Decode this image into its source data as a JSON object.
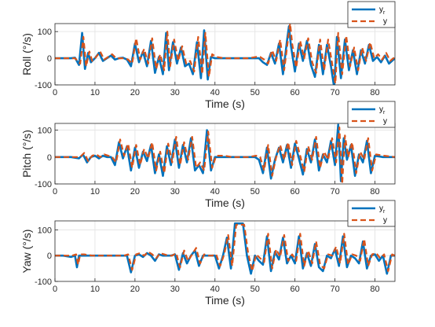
{
  "chart_data": [
    {
      "type": "line",
      "xlabel": "Time (s)",
      "ylabel": "Roll (°/s)",
      "xlim": [
        0,
        85
      ],
      "ylim": [
        -100,
        130
      ],
      "xticks": [
        "0",
        "10",
        "20",
        "30",
        "40",
        "50",
        "60",
        "70",
        "80"
      ],
      "yticks": [
        "100",
        "0",
        "-100"
      ],
      "grid": true,
      "legend_position": "top-right",
      "series": [
        {
          "name": "y_r",
          "color": "#0072BD",
          "style": "solid",
          "x": [
            0,
            2,
            4,
            5,
            6,
            6.8,
            7.5,
            8.3,
            9,
            10,
            11,
            12,
            13,
            14,
            15,
            16,
            17,
            18,
            19,
            20,
            21,
            22,
            23,
            24,
            25,
            26,
            27,
            27.8,
            28.5,
            29.5,
            30.5,
            31.5,
            32.5,
            33.5,
            34.5,
            35.5,
            36.5,
            37.3,
            38.2,
            39,
            40,
            42,
            44,
            46,
            48,
            50,
            51,
            52,
            53,
            54,
            55,
            56,
            57,
            58,
            58.5,
            59,
            60,
            61,
            62,
            63,
            64,
            65,
            66,
            67,
            68,
            69,
            69.8,
            70.5,
            71.5,
            72.5,
            73.5,
            74.5,
            75.5,
            76.5,
            77.5,
            78.5,
            79.5,
            80.5,
            81.5,
            82.5,
            83.5,
            85
          ],
          "values": [
            0,
            0,
            0,
            2,
            -25,
            95,
            -40,
            20,
            -15,
            0,
            20,
            -10,
            0,
            10,
            -5,
            0,
            2,
            -5,
            -30,
            55,
            -15,
            25,
            -30,
            65,
            -55,
            5,
            -60,
            95,
            -45,
            60,
            -20,
            40,
            -30,
            -20,
            -60,
            60,
            -75,
            105,
            -80,
            5,
            0,
            0,
            0,
            0,
            0,
            0,
            0,
            -15,
            -25,
            20,
            -20,
            55,
            -60,
            65,
            120,
            45,
            -50,
            55,
            -10,
            65,
            -25,
            -70,
            50,
            -60,
            50,
            -30,
            -110,
            80,
            -75,
            70,
            -45,
            30,
            -60,
            30,
            -20,
            50,
            -10,
            5,
            -15,
            10,
            -20,
            0
          ]
        },
        {
          "name": "y",
          "color": "#D95319",
          "style": "dashed",
          "x": [
            0,
            2,
            4,
            5,
            6.3,
            7.1,
            7.8,
            8.6,
            9.3,
            10.3,
            11.3,
            12.3,
            13.3,
            14.3,
            15.3,
            16.3,
            17.3,
            18.3,
            19.3,
            20.3,
            21.3,
            22.3,
            23.3,
            24.3,
            25.3,
            26.3,
            27.3,
            28.1,
            28.8,
            29.8,
            30.8,
            31.8,
            32.8,
            33.8,
            34.8,
            35.8,
            36.8,
            37.6,
            38.5,
            39.3,
            40.3,
            42.3,
            44.3,
            46.3,
            48.3,
            50.3,
            51.3,
            52.3,
            53.3,
            54.3,
            55.3,
            56.3,
            57.3,
            58.3,
            58.8,
            59.3,
            60.3,
            61.3,
            62.3,
            63.3,
            64.3,
            65.3,
            66.3,
            67.3,
            68.3,
            69.3,
            70.1,
            70.8,
            71.8,
            72.8,
            73.8,
            74.8,
            75.8,
            76.8,
            77.8,
            78.8,
            79.8,
            80.8,
            81.8,
            82.8,
            83.8,
            85
          ],
          "values": [
            0,
            0,
            0,
            0,
            -20,
            80,
            -30,
            25,
            -10,
            5,
            25,
            -5,
            5,
            15,
            0,
            0,
            0,
            -5,
            -20,
            75,
            -5,
            35,
            -20,
            75,
            -40,
            15,
            -45,
            100,
            -30,
            70,
            -10,
            45,
            -20,
            -10,
            -50,
            80,
            -60,
            95,
            -70,
            15,
            5,
            0,
            0,
            0,
            0,
            5,
            5,
            -5,
            -20,
            30,
            -10,
            70,
            -45,
            75,
            130,
            55,
            -35,
            65,
            0,
            75,
            -15,
            -55,
            70,
            -45,
            70,
            -20,
            -95,
            95,
            -60,
            85,
            -30,
            40,
            -45,
            40,
            -10,
            60,
            0,
            15,
            -5,
            20,
            -10,
            5
          ]
        }
      ]
    },
    {
      "type": "line",
      "xlabel": "Time (s)",
      "ylabel": "Pitch (°/s)",
      "xlim": [
        0,
        85
      ],
      "ylim": [
        -100,
        125
      ],
      "xticks": [
        "0",
        "10",
        "20",
        "30",
        "40",
        "50",
        "60",
        "70",
        "80"
      ],
      "yticks": [
        "100",
        "0",
        "-100"
      ],
      "grid": true,
      "legend_position": "top-right",
      "series": [
        {
          "name": "y_r",
          "color": "#0072BD",
          "style": "solid",
          "x": [
            0,
            2,
            4,
            6,
            7,
            8,
            9,
            10,
            11,
            12,
            13,
            14,
            15,
            16,
            17,
            18,
            19,
            20,
            21,
            22,
            23,
            24,
            25,
            26,
            27,
            28,
            29,
            30,
            31,
            32,
            33,
            34,
            35,
            36,
            37,
            38,
            39,
            40,
            42,
            44,
            46,
            48,
            50,
            51,
            52,
            53,
            54,
            55,
            56,
            57,
            58,
            59,
            60,
            61,
            62,
            63,
            64,
            65,
            66,
            67,
            68,
            69,
            70,
            70.8,
            71.5,
            72.2,
            73,
            74,
            75,
            76,
            77,
            78,
            79,
            80,
            82,
            85
          ],
          "values": [
            0,
            0,
            0,
            -5,
            10,
            -20,
            0,
            5,
            -5,
            5,
            0,
            0,
            -30,
            55,
            -5,
            40,
            -50,
            35,
            -40,
            20,
            -15,
            45,
            -60,
            10,
            -70,
            40,
            -30,
            65,
            -40,
            45,
            -20,
            70,
            -50,
            -30,
            -60,
            100,
            -50,
            0,
            0,
            0,
            0,
            0,
            0,
            -10,
            -60,
            35,
            -80,
            -10,
            35,
            -20,
            45,
            -40,
            50,
            -5,
            -65,
            30,
            -20,
            65,
            -50,
            10,
            -20,
            60,
            -30,
            120,
            -90,
            70,
            -10,
            45,
            -70,
            10,
            -20,
            60,
            -60,
            5,
            0,
            0
          ]
        },
        {
          "name": "y",
          "color": "#D95319",
          "style": "dashed",
          "x": [
            0,
            2,
            4,
            6.3,
            7.3,
            8.3,
            9.3,
            10.3,
            11.3,
            12.3,
            13.3,
            14.3,
            15.3,
            16.3,
            17.3,
            18.3,
            19.3,
            20.3,
            21.3,
            22.3,
            23.3,
            24.3,
            25.3,
            26.3,
            27.3,
            28.3,
            29.3,
            30.3,
            31.3,
            32.3,
            33.3,
            34.3,
            35.3,
            36.3,
            37.3,
            38.3,
            39.3,
            40.3,
            42.3,
            44.3,
            46.3,
            48.3,
            50.3,
            51.3,
            52.3,
            53.3,
            54.3,
            55.3,
            56.3,
            57.3,
            58.3,
            59.3,
            60.3,
            61.3,
            62.3,
            63.3,
            64.3,
            65.3,
            66.3,
            67.3,
            68.3,
            69.3,
            70.3,
            71.1,
            71.8,
            72.5,
            73.3,
            74.3,
            75.3,
            76.3,
            77.3,
            78.3,
            79.3,
            80.3,
            82.3,
            85
          ],
          "values": [
            0,
            0,
            0,
            0,
            15,
            -15,
            5,
            10,
            0,
            10,
            5,
            0,
            -20,
            65,
            5,
            50,
            -40,
            45,
            -30,
            30,
            -5,
            55,
            -50,
            20,
            -60,
            50,
            -20,
            75,
            -30,
            55,
            -10,
            75,
            -40,
            -20,
            -50,
            95,
            -40,
            5,
            5,
            0,
            0,
            0,
            5,
            0,
            -50,
            45,
            -70,
            0,
            45,
            -10,
            55,
            -30,
            60,
            5,
            -55,
            40,
            -10,
            75,
            -40,
            20,
            -10,
            70,
            -20,
            110,
            -100,
            80,
            0,
            55,
            -60,
            20,
            -10,
            70,
            -50,
            10,
            5,
            0
          ]
        }
      ]
    },
    {
      "type": "line",
      "xlabel": "Time (s)",
      "ylabel": "Yaw (°/s)",
      "xlim": [
        0,
        85
      ],
      "ylim": [
        -100,
        135
      ],
      "xticks": [
        "0",
        "10",
        "20",
        "30",
        "40",
        "50",
        "60",
        "70",
        "80"
      ],
      "yticks": [
        "100",
        "0",
        "-100"
      ],
      "grid": true,
      "legend_position": "top-right",
      "series": [
        {
          "name": "y_r",
          "color": "#0072BD",
          "style": "solid",
          "x": [
            0,
            2,
            4,
            5,
            5.5,
            6,
            7,
            9,
            11,
            13,
            15,
            16,
            17,
            18,
            19,
            20,
            21,
            22,
            23,
            24,
            25,
            26,
            27,
            28,
            29,
            30,
            31,
            32,
            33,
            34,
            35,
            36,
            37,
            38,
            39,
            40,
            41,
            42,
            43,
            44,
            45,
            46,
            47,
            48,
            49,
            50,
            51,
            52,
            53,
            54,
            55,
            56,
            57,
            58,
            59,
            60,
            61,
            62,
            63,
            64,
            65,
            66,
            67,
            68,
            69,
            70,
            71,
            72,
            73,
            74,
            75,
            76,
            77,
            78,
            79,
            80,
            81,
            82,
            83,
            84,
            85
          ],
          "values": [
            0,
            0,
            -5,
            0,
            -45,
            0,
            0,
            0,
            0,
            0,
            0,
            0,
            0,
            0,
            -65,
            0,
            5,
            -5,
            10,
            0,
            -20,
            5,
            0,
            0,
            0,
            5,
            -55,
            10,
            -30,
            0,
            20,
            -40,
            0,
            0,
            0,
            0,
            -50,
            0,
            70,
            -50,
            125,
            125,
            125,
            0,
            -70,
            0,
            -20,
            -35,
            75,
            -60,
            15,
            -15,
            70,
            -30,
            0,
            -30,
            75,
            -50,
            10,
            -40,
            45,
            -45,
            -60,
            0,
            -10,
            25,
            -40,
            75,
            -45,
            0,
            -10,
            -30,
            55,
            -50,
            0,
            5,
            -20,
            0,
            -70,
            0,
            0
          ]
        },
        {
          "name": "y",
          "color": "#D95319",
          "style": "dashed",
          "x": [
            0,
            2,
            4.3,
            5.3,
            5.8,
            6.3,
            7.3,
            9.3,
            11.3,
            13.3,
            15.3,
            16.3,
            17.3,
            18.3,
            19.3,
            20.3,
            21.3,
            22.3,
            23.3,
            24.3,
            25.3,
            26.3,
            27.3,
            28.3,
            29.3,
            30.3,
            31.3,
            32.3,
            33.3,
            34.3,
            35.3,
            36.3,
            37.3,
            38.3,
            39.3,
            40.3,
            41.3,
            42.3,
            43.3,
            44.3,
            45.3,
            46.3,
            47.3,
            48.3,
            49.3,
            50.3,
            51.3,
            52.3,
            53.3,
            54.3,
            55.3,
            56.3,
            57.3,
            58.3,
            59.3,
            60.3,
            61.3,
            62.3,
            63.3,
            64.3,
            65.3,
            66.3,
            67.3,
            68.3,
            69.3,
            70.3,
            71.3,
            72.3,
            73.3,
            74.3,
            75.3,
            76.3,
            77.3,
            78.3,
            79.3,
            80.3,
            81.3,
            82.3,
            83.3,
            84.3,
            85
          ],
          "values": [
            0,
            0,
            0,
            5,
            -35,
            5,
            5,
            0,
            0,
            0,
            0,
            0,
            0,
            5,
            -55,
            5,
            10,
            0,
            15,
            5,
            -10,
            10,
            5,
            0,
            0,
            10,
            -45,
            20,
            -20,
            5,
            30,
            -30,
            5,
            0,
            0,
            5,
            -40,
            5,
            80,
            -40,
            120,
            120,
            120,
            10,
            -60,
            5,
            -10,
            -25,
            85,
            -50,
            25,
            -5,
            80,
            -20,
            5,
            -20,
            85,
            -40,
            20,
            -30,
            55,
            -35,
            -50,
            5,
            0,
            35,
            -30,
            85,
            -35,
            5,
            0,
            -20,
            65,
            -40,
            5,
            10,
            -10,
            5,
            -60,
            5,
            0
          ]
        }
      ]
    }
  ]
}
